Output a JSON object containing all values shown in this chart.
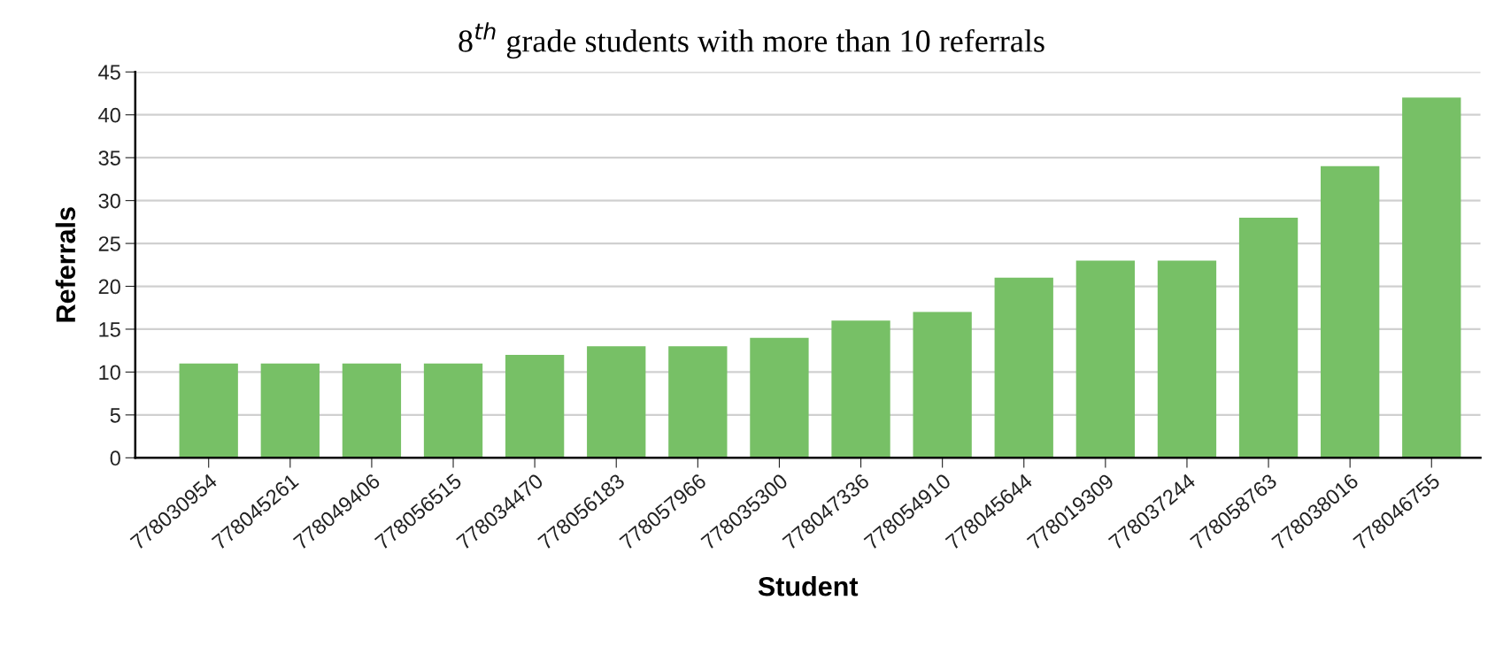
{
  "chart_data": {
    "type": "bar",
    "title": "8$^{th}$ grade students with more than 10 referrals",
    "xlabel": "Student",
    "ylabel": "Referrals",
    "categories": [
      "778030954",
      "778045261",
      "778049406",
      "778056515",
      "778034470",
      "778056183",
      "778057966",
      "778035300",
      "778047336",
      "778054910",
      "778045644",
      "778019309",
      "778037244",
      "778058763",
      "778038016",
      "778046755"
    ],
    "values": [
      11,
      11,
      11,
      11,
      12,
      13,
      13,
      14,
      16,
      17,
      21,
      23,
      23,
      28,
      34,
      42
    ],
    "color": "#77c066",
    "ylim": [
      0,
      45
    ],
    "yticks": [
      0,
      5,
      10,
      15,
      20,
      25,
      30,
      35,
      40,
      45
    ],
    "grid": "y"
  }
}
